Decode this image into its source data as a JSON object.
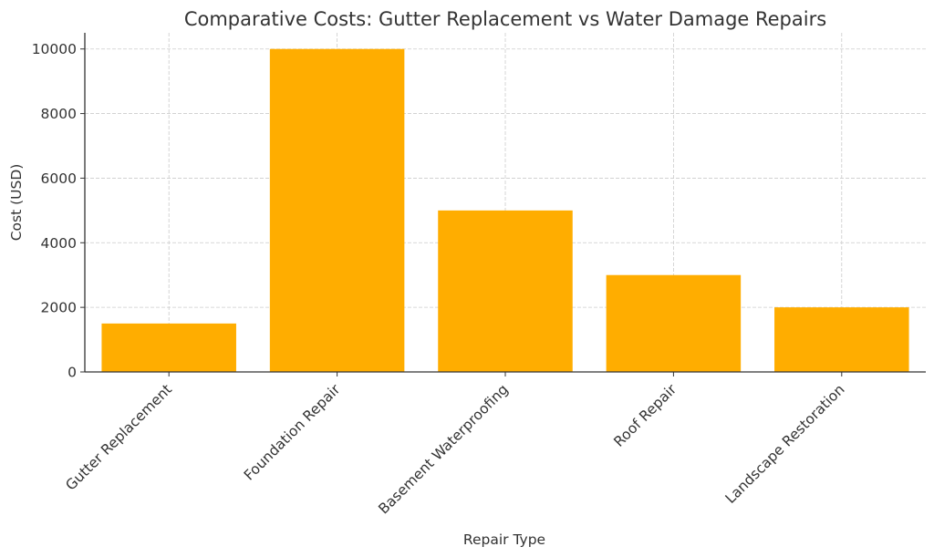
{
  "chart_data": {
    "type": "bar",
    "title": "Comparative Costs: Gutter Replacement vs Water Damage Repairs",
    "xlabel": "Repair Type",
    "ylabel": "Cost (USD)",
    "categories": [
      "Gutter Replacement",
      "Foundation Repair",
      "Basement Waterproofing",
      "Roof Repair",
      "Landscape Restoration"
    ],
    "values": [
      1500,
      10000,
      5000,
      3000,
      2000
    ],
    "yticks": [
      0,
      2000,
      4000,
      6000,
      8000,
      10000
    ],
    "ylim": [
      0,
      10500
    ],
    "grid": true,
    "legend": null,
    "bar_color": "#ffad00"
  }
}
